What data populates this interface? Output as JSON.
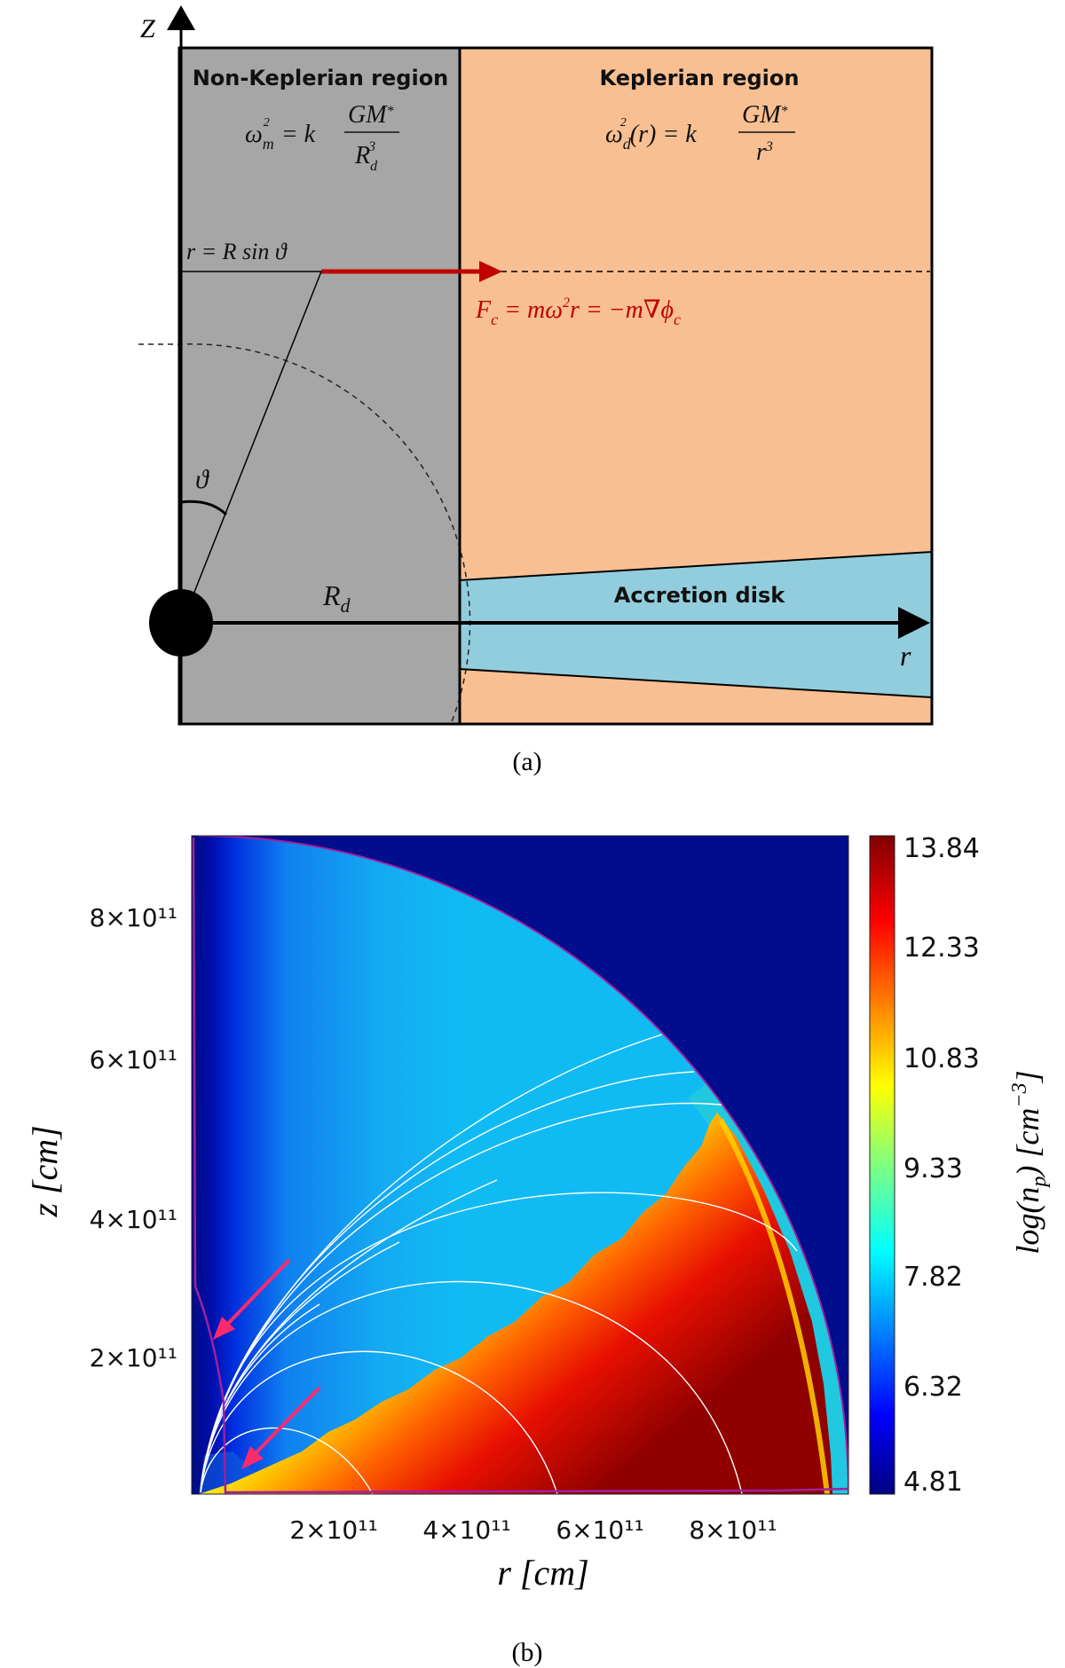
{
  "colors": {
    "non_keplerian_fill": "#a6a6a6",
    "keplerian_fill": "#f8bf92",
    "disk_fill": "#92cddd",
    "force_arrow": "#c00000",
    "contour": "#a020a0",
    "annotation_arrows": "#ff2a6d"
  },
  "diagram": {
    "z_axis_label": "Z",
    "r_axis_label": "r",
    "non_keplerian_title": "Non-Keplerian region",
    "non_keplerian_formula": {
      "lhs": "ω",
      "lhs_sub": "m",
      "lhs_sup": "2",
      "eq": " = k",
      "num": "GM",
      "num_sub": "*",
      "den": "R",
      "den_sub": "d",
      "den_sup": "3"
    },
    "keplerian_title": "Keplerian region",
    "keplerian_formula": {
      "lhs": "ω",
      "lhs_sub": "d",
      "lhs_sup": "2",
      "arg": "(r)",
      "eq": " = k",
      "num": "GM",
      "num_sub": "*",
      "den": "r",
      "den_sup": "3"
    },
    "r_equation": "r = R sin ϑ",
    "force_equation": {
      "f": "F",
      "f_sub": "c",
      "mid": " = mω",
      "sup": "2",
      "mid2": "r = −m∇ϕ",
      "end_sub": "c"
    },
    "theta_label": "ϑ",
    "rd_label": "R",
    "rd_sub": "d",
    "disk_label": "Accretion disk",
    "caption": "(a)"
  },
  "chart_data": {
    "type": "heatmap",
    "xlabel": "r [cm]",
    "ylabel": "z [cm]",
    "x_ticks": [
      "2×10¹¹",
      "4×10¹¹",
      "6×10¹¹",
      "8×10¹¹"
    ],
    "x_tick_values": [
      200000000000.0,
      400000000000.0,
      600000000000.0,
      800000000000.0
    ],
    "y_ticks": [
      "8×10¹¹",
      "6×10¹¹",
      "4×10¹¹",
      "2×10¹¹"
    ],
    "y_tick_values": [
      800000000000.0,
      600000000000.0,
      400000000000.0,
      200000000000.0
    ],
    "xlim": [
      0,
      960000000000.0
    ],
    "ylim": [
      0,
      960000000000.0
    ],
    "colorbar": {
      "label": "log(n_p) [cm⁻³]",
      "label_parts": {
        "pre": "log(n",
        "sub": "p",
        "mid": ") [cm",
        "sup": "−3",
        "post": "]"
      },
      "colormap": "jet",
      "range": [
        4.81,
        13.84
      ],
      "ticks": [
        "13.84",
        "12.33",
        "10.83",
        "9.33",
        "7.82",
        "6.32",
        "4.81"
      ],
      "tick_values": [
        13.84,
        12.33,
        10.83,
        9.33,
        7.82,
        6.32,
        4.81
      ]
    },
    "caption": "(b)"
  }
}
